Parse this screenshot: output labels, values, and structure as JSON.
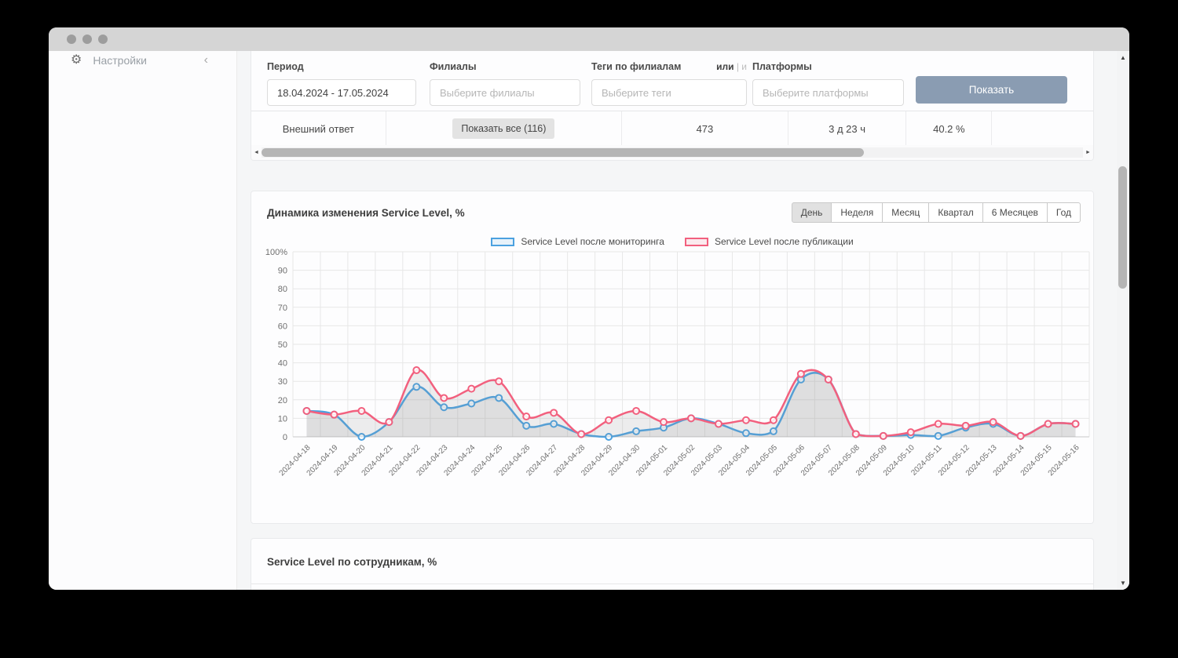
{
  "icons": {
    "gear": "⚙",
    "chevron_left": "‹",
    "scroll_up": "▲",
    "scroll_down": "▼",
    "scroll_left": "◄",
    "scroll_right": "►"
  },
  "sidebar": {
    "settings": "Настройки"
  },
  "filters": {
    "period_label": "Период",
    "period_value": "18.04.2024 - 17.05.2024",
    "branches_label": "Филиалы",
    "branches_placeholder": "Выберите филиалы",
    "tags_label": "Теги по филиалам",
    "tags_or": "или",
    "tags_sep": "|",
    "tags_and": "и",
    "tags_placeholder": "Выберите теги",
    "platforms_label": "Платформы",
    "platforms_placeholder": "Выберите платформы",
    "show_button": "Показать",
    "show_button_color": "#8a9cb2"
  },
  "summary_row": {
    "cells": [
      {
        "kind": "text",
        "text": "Внешний ответ"
      },
      {
        "kind": "button",
        "text": "Показать все (116)"
      },
      {
        "kind": "text",
        "text": "473"
      },
      {
        "kind": "text",
        "text": "3 д 23 ч"
      },
      {
        "kind": "text",
        "text": "40.2 %"
      },
      {
        "kind": "empty",
        "text": ""
      }
    ]
  },
  "chart_card": {
    "title": "Динамика изменения Service Level, %",
    "tabs": [
      {
        "label": "День",
        "active": true
      },
      {
        "label": "Неделя",
        "active": false
      },
      {
        "label": "Месяц",
        "active": false
      },
      {
        "label": "Квартал",
        "active": false
      },
      {
        "label": "6 Месяцев",
        "active": false
      },
      {
        "label": "Год",
        "active": false
      }
    ]
  },
  "chart_data": {
    "type": "line",
    "title": "Динамика изменения Service Level, %",
    "x": [
      "2024-04-18",
      "2024-04-19",
      "2024-04-20",
      "2024-04-21",
      "2024-04-22",
      "2024-04-23",
      "2024-04-24",
      "2024-04-25",
      "2024-04-26",
      "2024-04-27",
      "2024-04-28",
      "2024-04-29",
      "2024-04-30",
      "2024-05-01",
      "2024-05-02",
      "2024-05-03",
      "2024-05-04",
      "2024-05-05",
      "2024-05-06",
      "2024-05-07",
      "2024-05-08",
      "2024-05-09",
      "2024-05-10",
      "2024-05-11",
      "2024-05-12",
      "2024-05-13",
      "2024-05-14",
      "2024-05-15",
      "2024-05-16"
    ],
    "yticks": [
      "0",
      "10",
      "20",
      "30",
      "40",
      "50",
      "60",
      "70",
      "80",
      "90",
      "100%"
    ],
    "ylim": [
      0,
      100
    ],
    "grid": true,
    "legend_position": "top-center",
    "grid_color": "#e7e7e7",
    "axis_color": "#c9c9c9",
    "tick_label_color": "#6f6f6f",
    "area_fill": "rgba(150,150,150,0.16)",
    "series": [
      {
        "name": "Service Level после мониторинга",
        "color": "#4ba1e0",
        "values": [
          14,
          12,
          0,
          8,
          27,
          16,
          18,
          21,
          6,
          7,
          1.5,
          0,
          3,
          5,
          10,
          7,
          2,
          3,
          31,
          31,
          1.5,
          0.5,
          1,
          0.5,
          5,
          7,
          0.5,
          7,
          7
        ]
      },
      {
        "name": "Service Level после публикации",
        "color": "#f2607e",
        "values": [
          14,
          12,
          14,
          8,
          36,
          21,
          26,
          30,
          11,
          13,
          1.5,
          9,
          14,
          8,
          10,
          7,
          9,
          9,
          34,
          31,
          1.5,
          0.5,
          2.5,
          7,
          6,
          8,
          0.5,
          7,
          7
        ]
      }
    ]
  },
  "employees_card": {
    "title": "Service Level по сотрудникам, %"
  }
}
